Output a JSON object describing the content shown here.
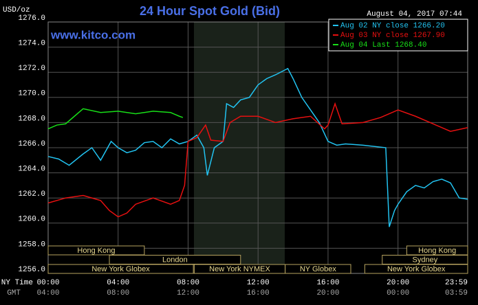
{
  "chart_data": {
    "type": "line",
    "title": "24 Hour Spot Gold (Bid)",
    "y_label": "USD/oz",
    "timestamp": "August 04, 2017 07:44",
    "watermark": "www.kitco.com",
    "x_label": "NY Time",
    "x2_label": "GMT",
    "xlim": [
      0,
      23.983
    ],
    "xticks": [
      {
        "value": 0,
        "label": "00:00"
      },
      {
        "value": 4,
        "label": "04:00"
      },
      {
        "value": 8,
        "label": "08:00"
      },
      {
        "value": 12,
        "label": "12:00"
      },
      {
        "value": 16,
        "label": "16:00"
      },
      {
        "value": 20,
        "label": "20:00"
      },
      {
        "value": 23.983,
        "label": "23:59"
      }
    ],
    "x2tick_labels": [
      "04:00",
      "08:00",
      "12:00",
      "16:00",
      "20:00",
      "00:00",
      "03:59"
    ],
    "ylim": [
      1256,
      1276
    ],
    "yticks": [
      {
        "value": 1256,
        "label": "1256.0"
      },
      {
        "value": 1258,
        "label": "1258.0"
      },
      {
        "value": 1260,
        "label": "1260.0"
      },
      {
        "value": 1262,
        "label": "1262.0"
      },
      {
        "value": 1264,
        "label": "1264.0"
      },
      {
        "value": 1266,
        "label": "1266.0"
      },
      {
        "value": 1268,
        "label": "1268.0"
      },
      {
        "value": 1270,
        "label": "1270.0"
      },
      {
        "value": 1272,
        "label": "1272.0"
      },
      {
        "value": 1274,
        "label": "1274.0"
      },
      {
        "value": 1276,
        "label": "1276.0"
      }
    ],
    "grid": true,
    "sessions": [
      "Hong Kong",
      "Hong Kong",
      "London",
      "Sydney",
      "New York Globex",
      "New York NYMEX",
      "NY Globex",
      "New York Globex"
    ],
    "series": [
      {
        "name": "Aug 02 NY close 1266.20",
        "color": "#22c4f2",
        "x": [
          0,
          0.6,
          1.2,
          2,
          2.5,
          3,
          3.6,
          4,
          4.5,
          5,
          5.5,
          6,
          6.5,
          7,
          7.5,
          8,
          8.5,
          8.9,
          9.1,
          9.5,
          10,
          10.2,
          10.6,
          11,
          11.5,
          12,
          12.5,
          13,
          13.7,
          14,
          14.5,
          15,
          15.5,
          16,
          16.5,
          17,
          18,
          19.3,
          19.5,
          19.8,
          20,
          20.5,
          21,
          21.5,
          22,
          22.5,
          23,
          23.5,
          23.983
        ],
        "values": [
          1265.3,
          1265.1,
          1264.6,
          1265.5,
          1266,
          1265,
          1266.5,
          1266,
          1265.6,
          1265.8,
          1266.4,
          1266.5,
          1266,
          1266.7,
          1266.3,
          1266.5,
          1267,
          1266,
          1263.8,
          1266,
          1266.5,
          1269.5,
          1269.2,
          1269.8,
          1270,
          1271,
          1271.5,
          1271.8,
          1272.3,
          1271.5,
          1270,
          1269,
          1268,
          1266.5,
          1266.2,
          1266.3,
          1266.2,
          1266,
          1259.7,
          1261,
          1261.5,
          1262.5,
          1263,
          1262.8,
          1263.3,
          1263.5,
          1263.2,
          1262,
          1261.9
        ]
      },
      {
        "name": "Aug 03 NY close 1267.90",
        "color": "#e81010",
        "x": [
          0,
          1,
          2,
          3,
          3.5,
          4,
          4.5,
          5,
          6,
          7,
          7.5,
          7.8,
          8,
          8.5,
          9,
          9.3,
          10,
          10.4,
          11,
          12,
          13,
          14,
          15,
          15.8,
          16,
          16.4,
          16.8,
          18,
          19,
          20,
          21,
          22,
          23,
          23.983
        ],
        "values": [
          1261.6,
          1262,
          1262.2,
          1261.8,
          1261,
          1260.5,
          1260.8,
          1261.5,
          1262,
          1261.5,
          1261.8,
          1263,
          1266.5,
          1266.8,
          1267.8,
          1266.6,
          1266.5,
          1268,
          1268.5,
          1268.5,
          1268,
          1268.3,
          1268.5,
          1267.5,
          1267.8,
          1269.5,
          1267.9,
          1268,
          1268.4,
          1269,
          1268.5,
          1267.9,
          1267.3,
          1267.6
        ]
      },
      {
        "name": "Aug 04 Last 1268.40",
        "color": "#18e018",
        "x": [
          0,
          0.5,
          1,
          1.5,
          2,
          3,
          4,
          5,
          6,
          7,
          7.5,
          7.7
        ],
        "values": [
          1267.5,
          1267.8,
          1267.9,
          1268.5,
          1269.1,
          1268.8,
          1268.9,
          1268.7,
          1268.9,
          1268.8,
          1268.5,
          1268.4
        ]
      }
    ]
  }
}
